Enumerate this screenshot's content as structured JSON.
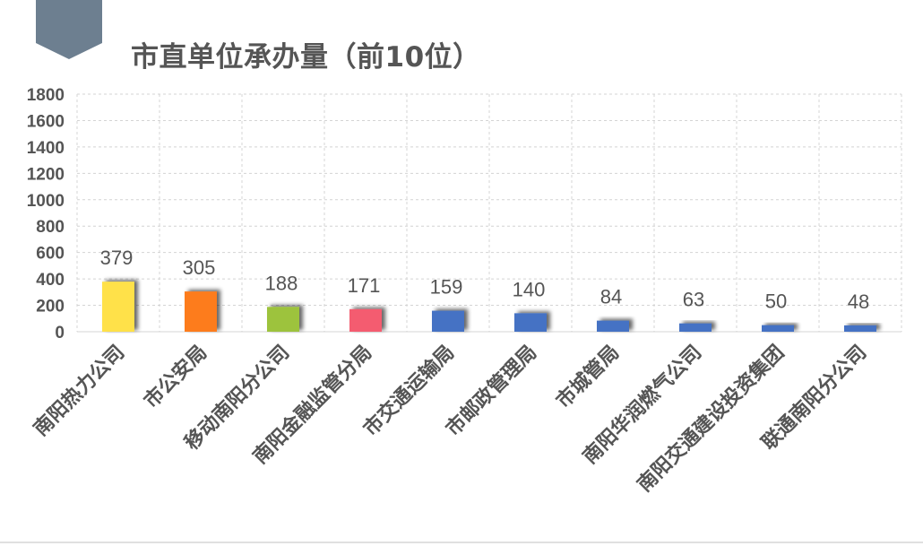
{
  "title": "市直单位承办量（前10位）",
  "colors": {
    "banner": "#6d7f90",
    "grid": "#d4d4d4",
    "text": "#555555",
    "yellow": "#ffe14a",
    "orange": "#fd7c1e",
    "green": "#9dc33c",
    "pink": "#f45b6f",
    "blue": "#4472c4"
  },
  "chart_data": {
    "type": "bar",
    "categories": [
      "南阳热力公司",
      "市公安局",
      "移动南阳分公司",
      "南阳金融监管分局",
      "市交通运输局",
      "市邮政管理局",
      "市城管局",
      "南阳华润燃气公司",
      "南阳交通建设投资集团",
      "联通南阳分公司"
    ],
    "values": [
      379,
      305,
      188,
      171,
      159,
      140,
      84,
      63,
      50,
      48
    ],
    "bar_colors": [
      "#ffe14a",
      "#fd7c1e",
      "#9dc33c",
      "#f45b6f",
      "#4472c4",
      "#4472c4",
      "#4472c4",
      "#4472c4",
      "#4472c4",
      "#4472c4"
    ],
    "ylim": [
      0,
      1800
    ],
    "yticks": [
      0,
      200,
      400,
      600,
      800,
      1000,
      1200,
      1400,
      1600,
      1800
    ],
    "grid": true,
    "data_labels": true
  }
}
